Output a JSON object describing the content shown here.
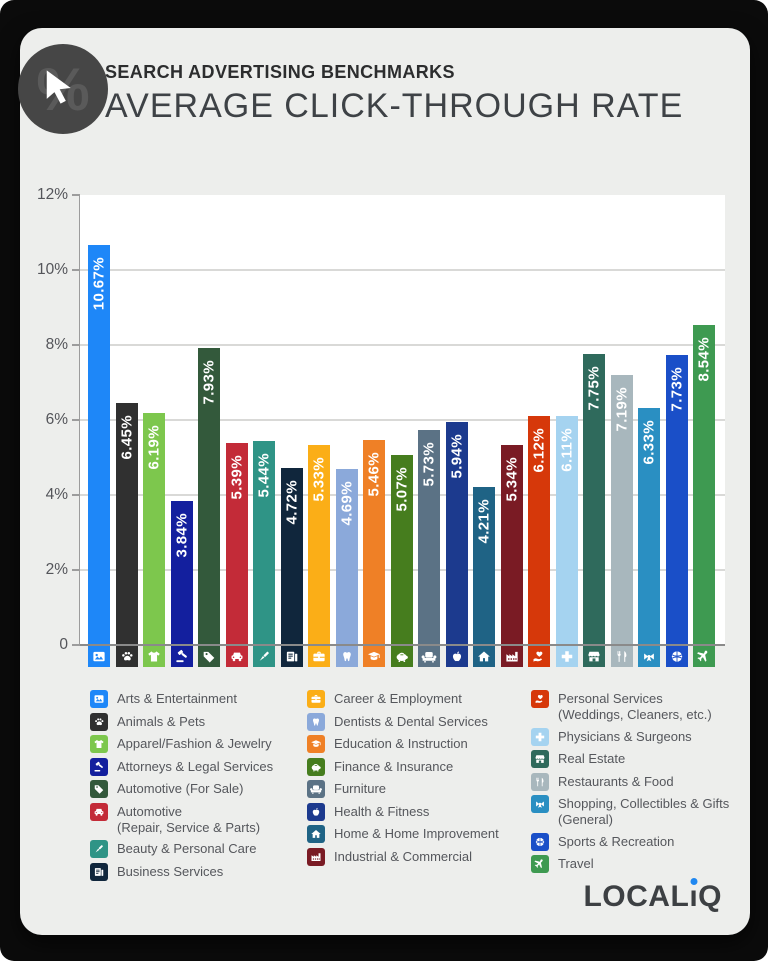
{
  "header": {
    "eyebrow": "SEARCH ADVERTISING BENCHMARKS",
    "title": "AVERAGE CLICK-THROUGH RATE",
    "badge_icon": "percent-cursor-icon",
    "badge_glyph": "%"
  },
  "chart_data": {
    "type": "bar",
    "title": "Average Click-Through Rate",
    "xlabel": "",
    "ylabel": "",
    "ylim": [
      0,
      12
    ],
    "grid": true,
    "legend_position": "bottom",
    "ytick_values": [
      12,
      10,
      8,
      6,
      4,
      2,
      0
    ],
    "ytick_labels": [
      "12%",
      "10%",
      "8%",
      "6%",
      "4%",
      "2%",
      "0"
    ],
    "gridline_values": [
      10,
      8,
      6,
      4,
      2
    ],
    "categories": [
      "Arts & Entertainment",
      "Animals & Pets",
      "Apparel/Fashion & Jewelry",
      "Attorneys & Legal Services",
      "Automotive (For Sale)",
      "Automotive (Repair, Service & Parts)",
      "Beauty & Personal Care",
      "Business Services",
      "Career & Employment",
      "Dentists & Dental Services",
      "Education & Instruction",
      "Finance & Insurance",
      "Furniture",
      "Health & Fitness",
      "Home & Home Improvement",
      "Industrial & Commercial",
      "Personal Services (Weddings, Cleaners, etc.)",
      "Physicians & Surgeons",
      "Real Estate",
      "Restaurants & Food",
      "Shopping, Collectibles & Gifts (General)",
      "Sports & Recreation",
      "Travel"
    ],
    "values": [
      10.67,
      6.45,
      6.19,
      3.84,
      7.93,
      5.39,
      5.44,
      4.72,
      5.33,
      4.69,
      5.46,
      5.07,
      5.73,
      5.94,
      4.21,
      5.34,
      6.12,
      6.11,
      7.75,
      7.19,
      6.33,
      7.73,
      8.54
    ],
    "labels": [
      "10.67%",
      "6.45%",
      "6.19%",
      "3.84%",
      "7.93%",
      "5.39%",
      "5.44%",
      "4.72%",
      "5.33%",
      "4.69%",
      "5.46%",
      "5.07%",
      "5.73%",
      "5.94%",
      "4.21%",
      "5.34%",
      "6.12%",
      "6.11%",
      "7.75%",
      "7.19%",
      "6.33%",
      "7.73%",
      "8.54%"
    ],
    "colors": [
      "#1E87F8",
      "#303030",
      "#7DC74D",
      "#131F9E",
      "#33593B",
      "#C32B38",
      "#2F9486",
      "#10263C",
      "#FBAE17",
      "#8BA9DA",
      "#EF8026",
      "#467D1E",
      "#5B7285",
      "#1C3A8E",
      "#1F6385",
      "#7A1B24",
      "#D6380A",
      "#A5D3F0",
      "#2F6A5C",
      "#A8B7BD",
      "#2A8FC2",
      "#1A4FC8",
      "#3E9A51"
    ],
    "icons": [
      "picture-icon",
      "paw-icon",
      "tshirt-icon",
      "gavel-icon",
      "price-tag-icon",
      "car-icon",
      "brush-icon",
      "documents-icon",
      "briefcase-icon",
      "tooth-icon",
      "graduation-cap-icon",
      "piggy-bank-icon",
      "armchair-icon",
      "apple-icon",
      "house-icon",
      "factory-icon",
      "hand-heart-icon",
      "medical-cross-icon",
      "storefront-icon",
      "cutlery-icon",
      "gift-bow-icon",
      "ball-icon",
      "plane-icon"
    ]
  },
  "legend": {
    "columns": [
      [
        {
          "index": 0,
          "lines": [
            "Arts & Entertainment"
          ]
        },
        {
          "index": 1,
          "lines": [
            "Animals & Pets"
          ]
        },
        {
          "index": 2,
          "lines": [
            "Apparel/Fashion & Jewelry"
          ]
        },
        {
          "index": 3,
          "lines": [
            "Attorneys & Legal Services"
          ]
        },
        {
          "index": 4,
          "lines": [
            "Automotive (For Sale)"
          ]
        },
        {
          "index": 5,
          "lines": [
            "Automotive",
            "(Repair, Service & Parts)"
          ]
        },
        {
          "index": 6,
          "lines": [
            "Beauty & Personal Care"
          ]
        },
        {
          "index": 7,
          "lines": [
            "Business Services"
          ]
        }
      ],
      [
        {
          "index": 8,
          "lines": [
            "Career & Employment"
          ]
        },
        {
          "index": 9,
          "lines": [
            "Dentists & Dental Services"
          ]
        },
        {
          "index": 10,
          "lines": [
            "Education & Instruction"
          ]
        },
        {
          "index": 11,
          "lines": [
            "Finance & Insurance"
          ]
        },
        {
          "index": 12,
          "lines": [
            "Furniture"
          ]
        },
        {
          "index": 13,
          "lines": [
            "Health & Fitness"
          ]
        },
        {
          "index": 14,
          "lines": [
            "Home & Home Improvement"
          ]
        },
        {
          "index": 15,
          "lines": [
            "Industrial & Commercial"
          ]
        }
      ],
      [
        {
          "index": 16,
          "lines": [
            "Personal Services",
            "(Weddings, Cleaners, etc.)"
          ]
        },
        {
          "index": 17,
          "lines": [
            "Physicians & Surgeons"
          ]
        },
        {
          "index": 18,
          "lines": [
            "Real Estate"
          ]
        },
        {
          "index": 19,
          "lines": [
            "Restaurants & Food"
          ]
        },
        {
          "index": 20,
          "lines": [
            "Shopping, Collectibles & Gifts",
            "(General)"
          ]
        },
        {
          "index": 21,
          "lines": [
            "Sports & Recreation"
          ]
        },
        {
          "index": 22,
          "lines": [
            "Travel"
          ]
        }
      ]
    ]
  },
  "footer": {
    "logo_text": "LOCALiQ",
    "logo_part1": "LOCAL",
    "logo_i": "ı",
    "logo_part2": "Q",
    "logo_dot_color": "#1F87F0"
  }
}
